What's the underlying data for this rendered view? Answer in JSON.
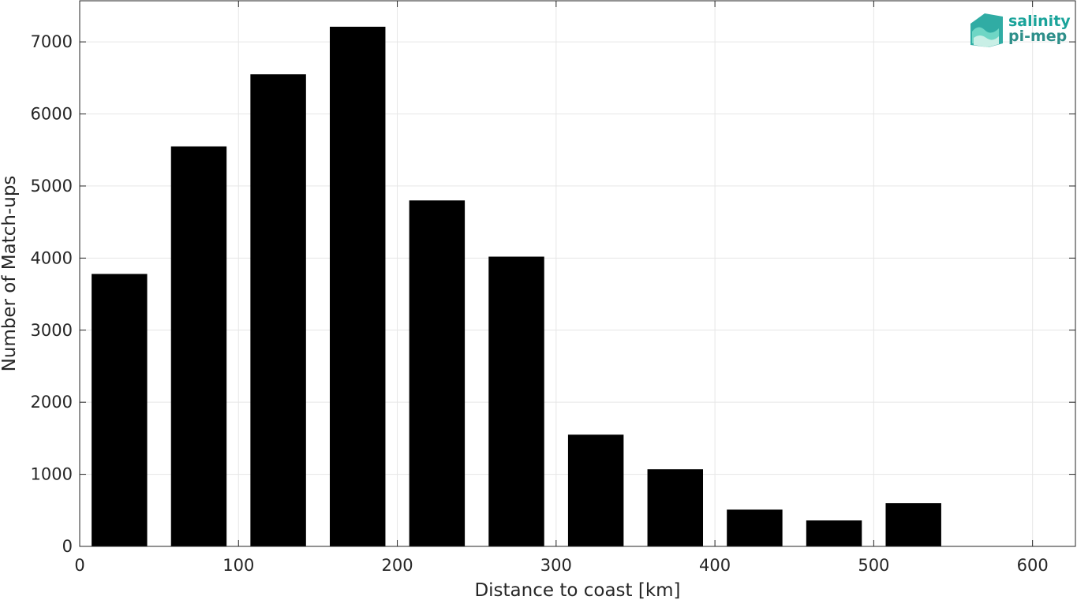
{
  "chart_data": {
    "type": "bar",
    "title": "",
    "xlabel": "Distance to coast [km]",
    "ylabel": "Number of Match-ups",
    "x": [
      25,
      75,
      125,
      175,
      225,
      275,
      325,
      375,
      425,
      475,
      525,
      575
    ],
    "values": [
      3780,
      5550,
      6550,
      7210,
      4800,
      4020,
      1550,
      1070,
      510,
      360,
      600,
      0
    ],
    "bin_width": 35,
    "xlim": [
      0,
      627
    ],
    "ylim": [
      0,
      7570
    ],
    "xticks": [
      0,
      100,
      200,
      300,
      400,
      500,
      600
    ],
    "yticks": [
      0,
      1000,
      2000,
      3000,
      4000,
      5000,
      6000,
      7000
    ],
    "grid": true,
    "bar_color": "#000000"
  },
  "logo": {
    "line1": "salinity",
    "line2": "pi-mep"
  },
  "colors": {
    "grid": "#e6e6e6",
    "axis": "#262626",
    "logo_teal": "#1aa39a"
  }
}
